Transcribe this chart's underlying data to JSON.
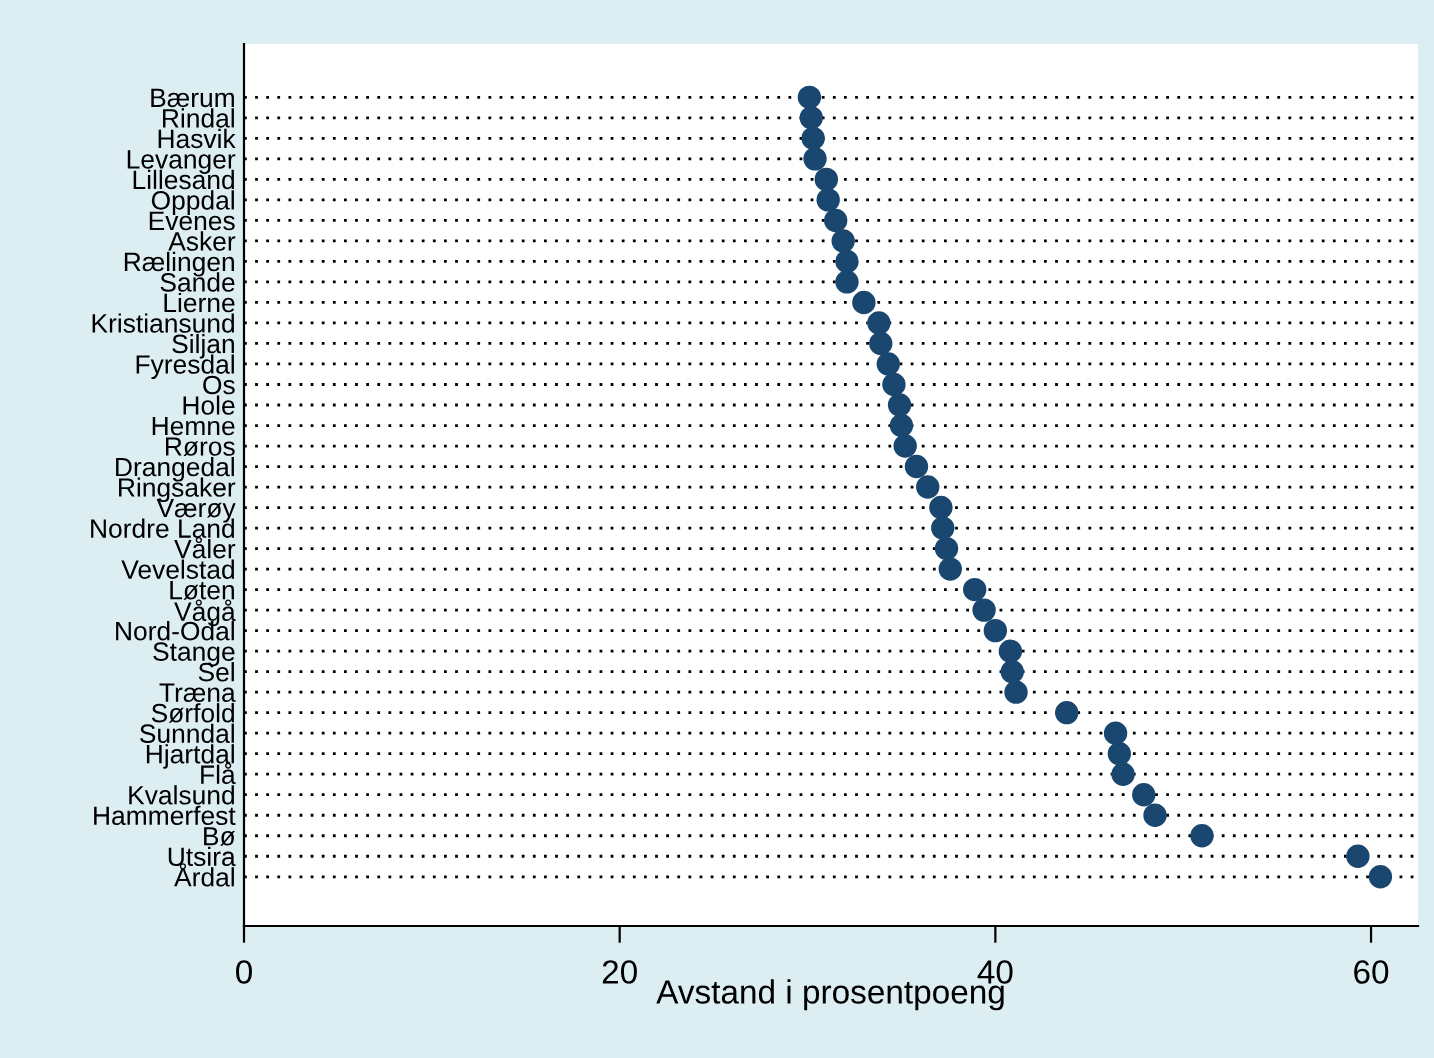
{
  "chart_data": {
    "type": "scatter",
    "orientation": "horizontal",
    "xlabel": "Avstand i prosentpoeng",
    "categories": [
      "Bærum",
      "Rindal",
      "Hasvik",
      "Levanger",
      "Lillesand",
      "Oppdal",
      "Evenes",
      "Asker",
      "Rælingen",
      "Sande",
      "Lierne",
      "Kristiansund",
      "Siljan",
      "Fyresdal",
      "Os",
      "Hole",
      "Hemne",
      "Røros",
      "Drangedal",
      "Ringsaker",
      "Værøy",
      "Nordre Land",
      "Våler",
      "Vevelstad",
      "Løten",
      "Vågå",
      "Nord-Odal",
      "Stange",
      "Sel",
      "Træna",
      "Sørfold",
      "Sunndal",
      "Hjartdal",
      "Flå",
      "Kvalsund",
      "Hammerfest",
      "Bø",
      "Utsira",
      "Årdal"
    ],
    "series": [
      {
        "color": "#1a476f",
        "values": [
          30.1,
          30.2,
          30.3,
          30.4,
          31.0,
          31.1,
          31.5,
          31.9,
          32.1,
          32.1,
          33.0,
          33.8,
          33.9,
          34.3,
          34.6,
          34.9,
          35.0,
          35.2,
          35.8,
          36.4,
          37.1,
          37.2,
          37.4,
          37.6,
          38.9,
          39.4,
          40.0,
          40.8,
          40.9,
          41.1,
          43.8,
          46.4,
          46.6,
          46.8,
          47.9,
          48.5,
          51.0,
          59.3,
          60.5
        ]
      }
    ],
    "xlim": [
      0,
      62.5
    ],
    "xticks": [
      0,
      20,
      40,
      60
    ],
    "grid": "y",
    "marker": "circle"
  }
}
